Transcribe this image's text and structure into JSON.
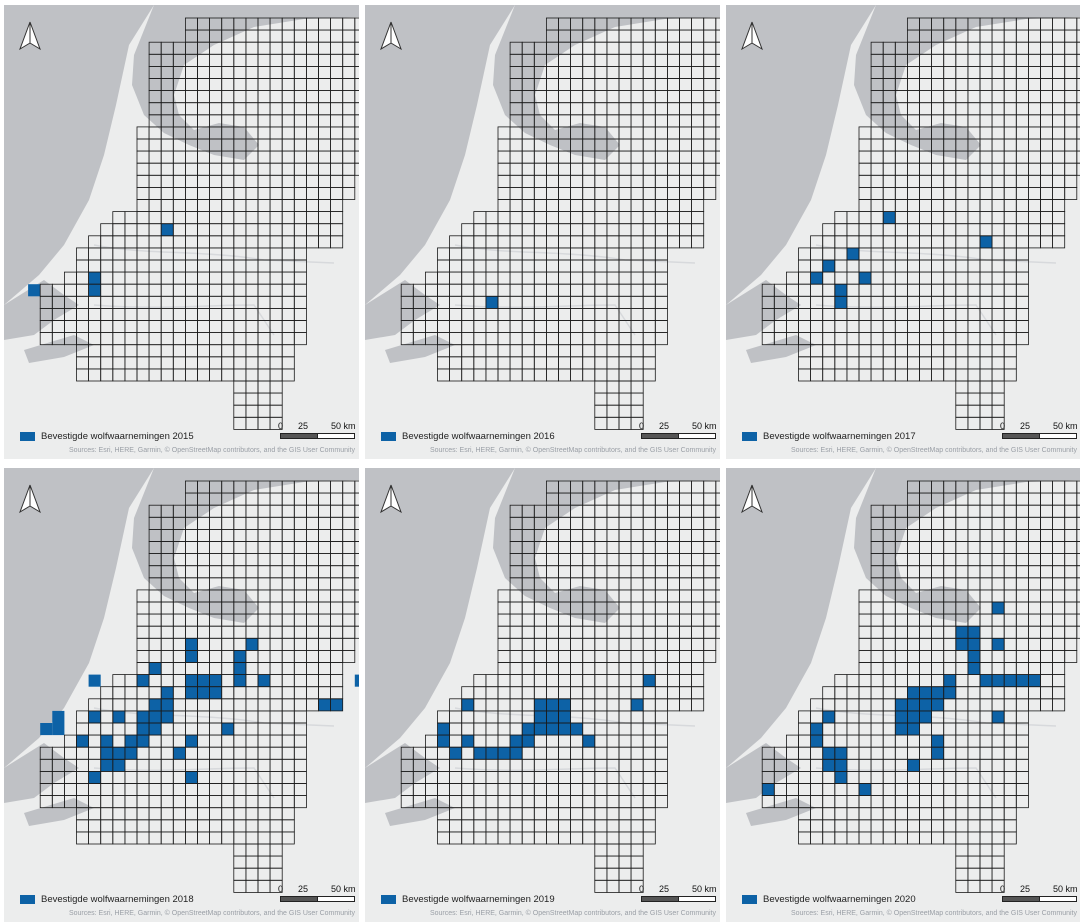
{
  "colors": {
    "sighting": "#0d62a6",
    "land": "#eceded",
    "water": "#bfc1c5",
    "grid": "#1a1a1a",
    "subgrid": "#b4b4b4"
  },
  "icons": {
    "north_arrow": "north-arrow-icon"
  },
  "legend_prefix": "Bevestigde wolfwaarnemingen",
  "scale": {
    "t0": "0",
    "t1": "25",
    "t2": "50 km"
  },
  "attribution": "Sources: Esri, HERE, Garmin, © OpenStreetMap contributors, and the GIS User Community",
  "panels": [
    {
      "year": "2015",
      "legend": "Bevestigde wolfwaarnemingen 2015",
      "cells": [
        [
          1,
          22
        ],
        [
          6,
          21
        ],
        [
          6,
          22
        ],
        [
          12,
          17
        ]
      ]
    },
    {
      "year": "2016",
      "legend": "Bevestigde wolfwaarnemingen 2016",
      "cells": [
        [
          9,
          23
        ]
      ]
    },
    {
      "year": "2017",
      "legend": "Bevestigde wolfwaarnemingen 2017",
      "cells": [
        [
          6,
          21
        ],
        [
          7,
          20
        ],
        [
          8,
          22
        ],
        [
          8,
          23
        ],
        [
          9,
          19
        ],
        [
          10,
          21
        ],
        [
          12,
          16
        ],
        [
          20,
          18
        ]
      ]
    },
    {
      "year": "2018",
      "legend": "Bevestigde wolfwaarnemingen 2018",
      "cells": [
        [
          2,
          20
        ],
        [
          3,
          20
        ],
        [
          3,
          19
        ],
        [
          5,
          21
        ],
        [
          6,
          16
        ],
        [
          6,
          19
        ],
        [
          6,
          24
        ],
        [
          7,
          21
        ],
        [
          7,
          22
        ],
        [
          7,
          23
        ],
        [
          8,
          19
        ],
        [
          8,
          22
        ],
        [
          8,
          23
        ],
        [
          9,
          21
        ],
        [
          9,
          22
        ],
        [
          10,
          16
        ],
        [
          10,
          19
        ],
        [
          10,
          20
        ],
        [
          10,
          21
        ],
        [
          11,
          15
        ],
        [
          11,
          18
        ],
        [
          11,
          19
        ],
        [
          11,
          20
        ],
        [
          12,
          17
        ],
        [
          12,
          18
        ],
        [
          12,
          19
        ],
        [
          13,
          22
        ],
        [
          14,
          13
        ],
        [
          14,
          14
        ],
        [
          14,
          16
        ],
        [
          14,
          17
        ],
        [
          14,
          21
        ],
        [
          14,
          24
        ],
        [
          15,
          16
        ],
        [
          15,
          17
        ],
        [
          16,
          16
        ],
        [
          16,
          17
        ],
        [
          17,
          20
        ],
        [
          18,
          14
        ],
        [
          18,
          15
        ],
        [
          18,
          16
        ],
        [
          19,
          13
        ],
        [
          20,
          16
        ],
        [
          25,
          18
        ],
        [
          26,
          18
        ],
        [
          28,
          16
        ]
      ]
    },
    {
      "year": "2019",
      "legend": "Bevestigde wolfwaarnemingen 2019",
      "cells": [
        [
          5,
          20
        ],
        [
          5,
          21
        ],
        [
          6,
          22
        ],
        [
          7,
          18
        ],
        [
          7,
          21
        ],
        [
          8,
          22
        ],
        [
          9,
          22
        ],
        [
          10,
          22
        ],
        [
          11,
          21
        ],
        [
          11,
          22
        ],
        [
          12,
          20
        ],
        [
          12,
          21
        ],
        [
          13,
          18
        ],
        [
          13,
          19
        ],
        [
          13,
          20
        ],
        [
          14,
          18
        ],
        [
          14,
          19
        ],
        [
          14,
          20
        ],
        [
          15,
          18
        ],
        [
          15,
          19
        ],
        [
          15,
          20
        ],
        [
          16,
          20
        ],
        [
          17,
          21
        ],
        [
          21,
          18
        ],
        [
          22,
          16
        ],
        [
          30,
          17
        ]
      ]
    },
    {
      "year": "2020",
      "legend": "Bevestigde wolfwaarnemingen 2020",
      "cells": [
        [
          2,
          25
        ],
        [
          6,
          20
        ],
        [
          6,
          21
        ],
        [
          7,
          19
        ],
        [
          7,
          22
        ],
        [
          7,
          23
        ],
        [
          8,
          22
        ],
        [
          8,
          23
        ],
        [
          8,
          24
        ],
        [
          10,
          25
        ],
        [
          13,
          18
        ],
        [
          13,
          19
        ],
        [
          13,
          20
        ],
        [
          14,
          17
        ],
        [
          14,
          18
        ],
        [
          14,
          19
        ],
        [
          14,
          20
        ],
        [
          14,
          23
        ],
        [
          15,
          17
        ],
        [
          15,
          18
        ],
        [
          15,
          19
        ],
        [
          16,
          17
        ],
        [
          16,
          18
        ],
        [
          16,
          21
        ],
        [
          16,
          22
        ],
        [
          17,
          16
        ],
        [
          17,
          17
        ],
        [
          18,
          12
        ],
        [
          18,
          13
        ],
        [
          19,
          12
        ],
        [
          19,
          13
        ],
        [
          19,
          14
        ],
        [
          19,
          15
        ],
        [
          20,
          16
        ],
        [
          21,
          10
        ],
        [
          21,
          13
        ],
        [
          21,
          16
        ],
        [
          21,
          19
        ],
        [
          22,
          16
        ],
        [
          23,
          16
        ],
        [
          24,
          16
        ]
      ]
    }
  ]
}
